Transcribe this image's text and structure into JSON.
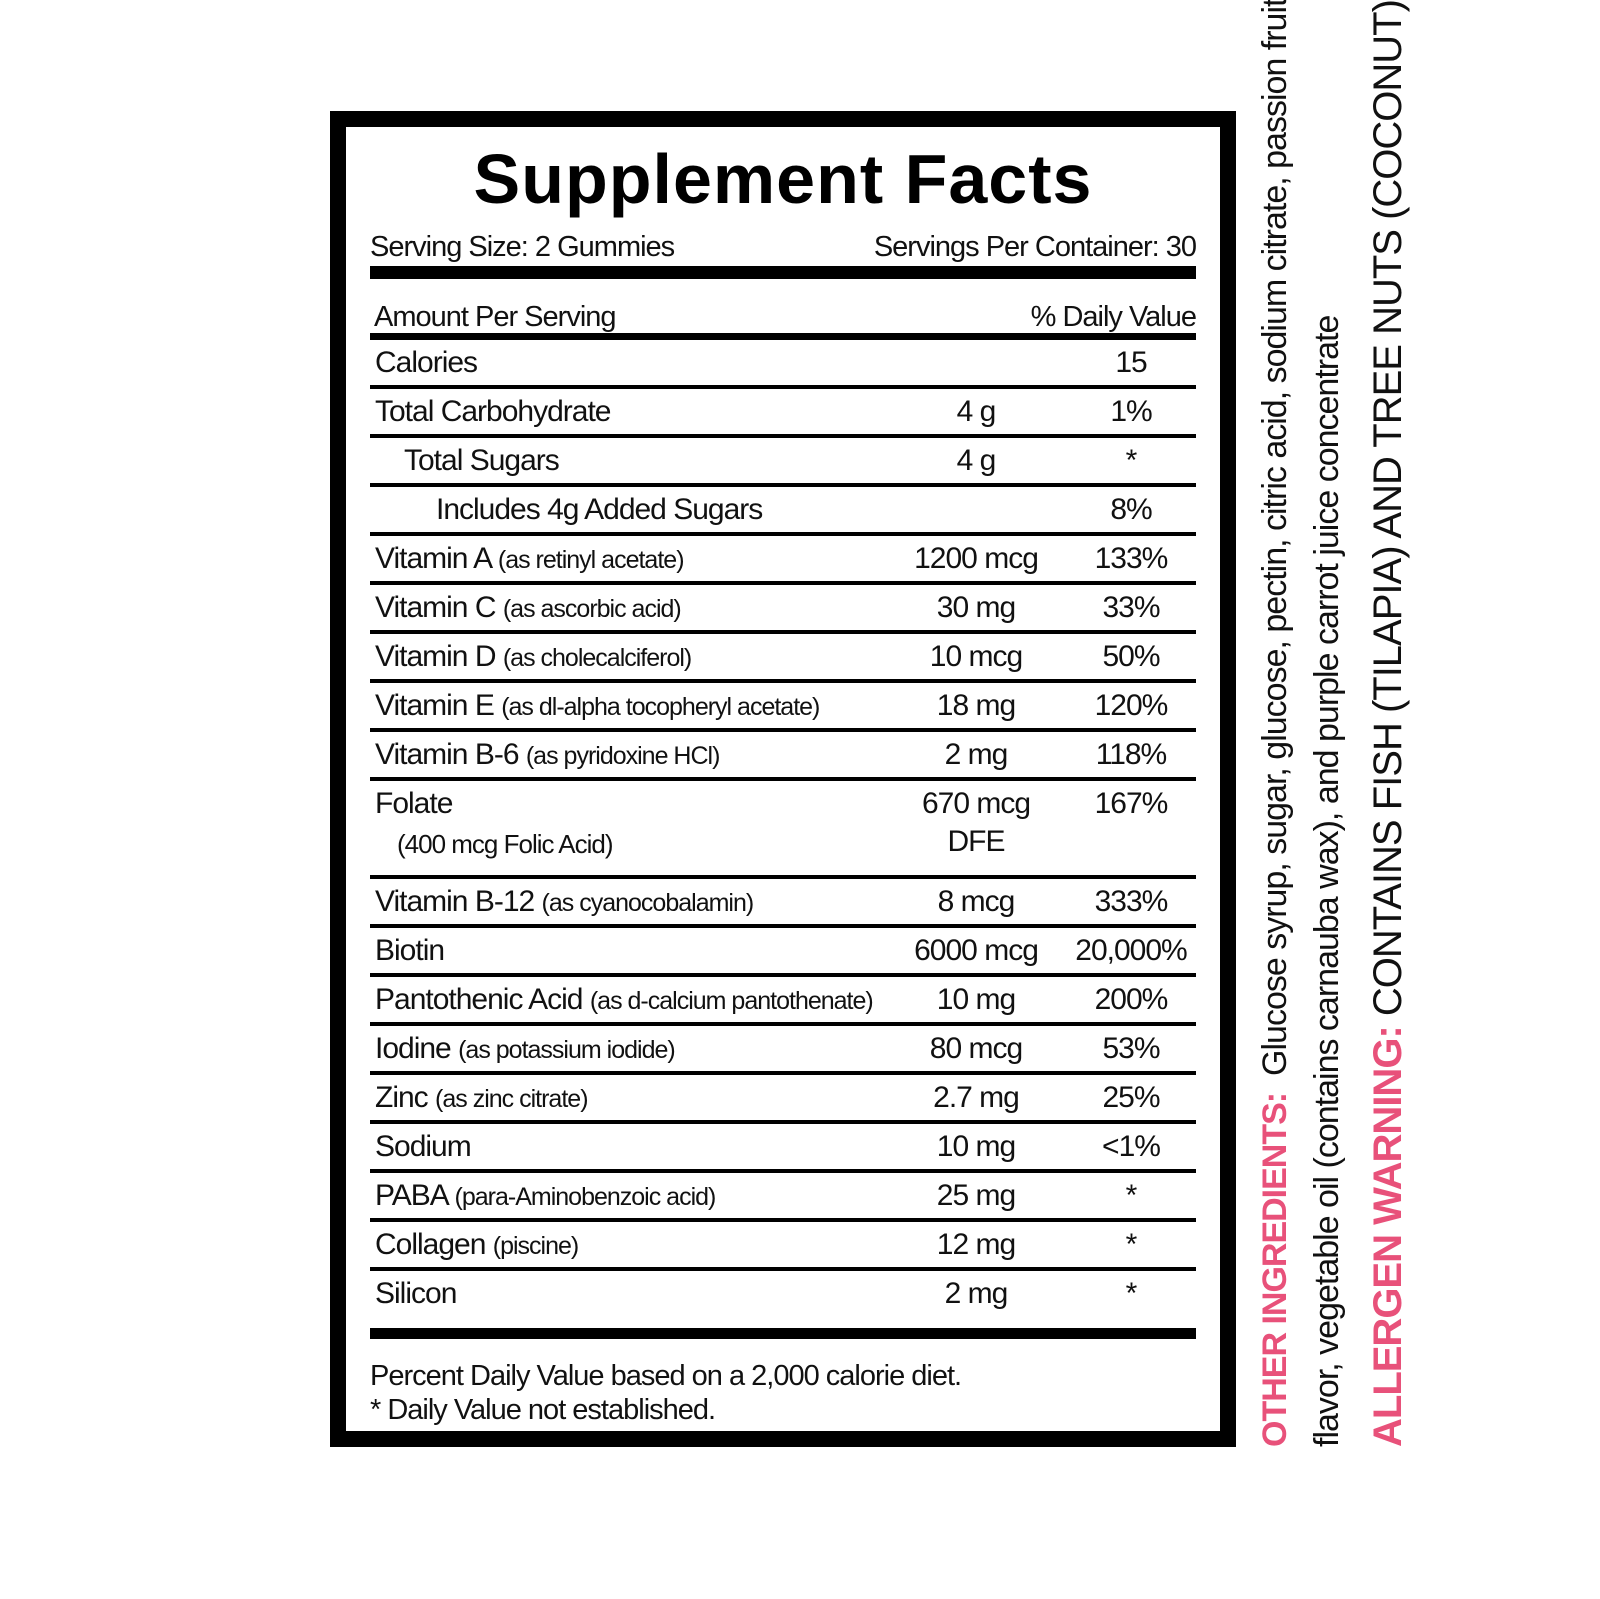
{
  "title": "Supplement Facts",
  "serving_size": "Serving Size: 2 Gummies",
  "servings_per_container": "Servings Per Container: 30",
  "amount_per_serving": "Amount Per Serving",
  "daily_value_header": "% Daily Value",
  "rows": [
    {
      "name": "Calories",
      "detail": "",
      "amount": "",
      "dv": "15"
    },
    {
      "name": "Total Carbohydrate",
      "detail": "",
      "amount": "4 g",
      "dv": "1%"
    },
    {
      "name": "Total Sugars",
      "detail": "",
      "amount": "4 g",
      "dv": "*"
    },
    {
      "name": "Includes 4g Added Sugars",
      "detail": "",
      "amount": "",
      "dv": "8%"
    },
    {
      "name": "Vitamin A",
      "detail": "(as retinyl acetate)",
      "amount": "1200 mcg",
      "dv": "133%"
    },
    {
      "name": "Vitamin C",
      "detail": "(as ascorbic acid)",
      "amount": "30 mg",
      "dv": "33%"
    },
    {
      "name": "Vitamin D",
      "detail": "(as cholecalciferol)",
      "amount": "10 mcg",
      "dv": "50%"
    },
    {
      "name": "Vitamin E",
      "detail": "(as dl-alpha tocopheryl acetate)",
      "amount": "18 mg",
      "dv": "120%"
    },
    {
      "name": "Vitamin B-6",
      "detail": "(as pyridoxine HCl)",
      "amount": "2 mg",
      "dv": "118%"
    },
    {
      "name": "Folate",
      "detail": "(400 mcg Folic Acid)",
      "amount": "670 mcg",
      "amount2": "DFE",
      "dv": "167%"
    },
    {
      "name": "Vitamin B-12",
      "detail": "(as cyanocobalamin)",
      "amount": "8 mcg",
      "dv": "333%"
    },
    {
      "name": "Biotin",
      "detail": "",
      "amount": "6000 mcg",
      "dv": "20,000%"
    },
    {
      "name": "Pantothenic Acid",
      "detail": "(as d-calcium pantothenate)",
      "amount": "10 mg",
      "dv": "200%"
    },
    {
      "name": "Iodine",
      "detail": "(as potassium iodide)",
      "amount": "80 mcg",
      "dv": "53%"
    },
    {
      "name": "Zinc",
      "detail": "(as zinc citrate)",
      "amount": "2.7 mg",
      "dv": "25%"
    },
    {
      "name": "Sodium",
      "detail": "",
      "amount": "10 mg",
      "dv": "<1%"
    },
    {
      "name": "PABA",
      "detail": "(para-Aminobenzoic acid)",
      "amount": "25 mg",
      "dv": "*"
    },
    {
      "name": "Collagen",
      "detail": "(piscine)",
      "amount": "12 mg",
      "dv": "*"
    },
    {
      "name": "Silicon",
      "detail": "",
      "amount": "2 mg",
      "dv": "*"
    }
  ],
  "footnote_1": "Percent Daily Value based on a 2,000 calorie diet.",
  "footnote_2": "* Daily Value not established.",
  "other_ingredients_label": "OTHER INGREDIENTS:",
  "other_ingredients_line1": "Glucose syrup, sugar, glucose, pectin, citric acid, sodium citrate, passion fruit",
  "other_ingredients_line2": "flavor, vegetable oil (contains carnauba wax), and purple carrot juice concentrate",
  "allergen_label": "ALLERGEN WARNING:",
  "allergen_text": "CONTAINS FISH (TILAPIA) AND TREE NUTS (COCONUT)",
  "colors": {
    "accent": "#e8517a",
    "border": "#000000"
  }
}
